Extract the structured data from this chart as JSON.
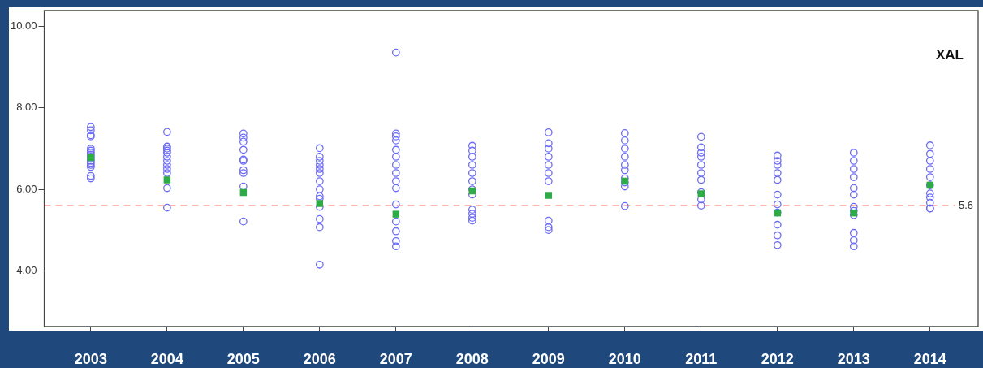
{
  "chart_data": {
    "type": "scatter",
    "xlim": [
      2002.39,
      2014.63
    ],
    "xticks": [
      2003,
      2004,
      2005,
      2006,
      2007,
      2008,
      2009,
      2010,
      2011,
      2012,
      2013,
      2014
    ],
    "ylim": [
      2.63,
      10.39
    ],
    "yticks": [
      {
        "value": 4,
        "label": "4.00"
      },
      {
        "value": 6,
        "label": "6.00"
      },
      {
        "value": 8,
        "label": "8.00"
      },
      {
        "value": 10,
        "label": "10.00"
      }
    ],
    "marker": "circle",
    "series": [
      {
        "type": "scatter",
        "color": "#6b6bf5",
        "x": [
          2003,
          2003,
          2003,
          2003,
          2003,
          2003,
          2003,
          2003,
          2003,
          2003,
          2003,
          2003,
          2003,
          2003,
          2003,
          2003,
          2004,
          2004,
          2004,
          2004,
          2004,
          2004,
          2004,
          2004,
          2004,
          2004,
          2004,
          2004,
          2005,
          2005,
          2005,
          2005,
          2005,
          2005,
          2005,
          2005,
          2005,
          2005,
          2006,
          2006,
          2006,
          2006,
          2006,
          2006,
          2006,
          2006,
          2006,
          2006,
          2006,
          2006,
          2006,
          2006,
          2007,
          2007,
          2007,
          2007,
          2007,
          2007,
          2007,
          2007,
          2007,
          2007,
          2007,
          2007,
          2007,
          2007,
          2007,
          2008,
          2008,
          2008,
          2008,
          2008,
          2008,
          2008,
          2008,
          2008,
          2008,
          2008,
          2008,
          2009,
          2009,
          2009,
          2009,
          2009,
          2009,
          2009,
          2009,
          2009,
          2009,
          2010,
          2010,
          2010,
          2010,
          2010,
          2010,
          2010,
          2010,
          2010,
          2010,
          2011,
          2011,
          2011,
          2011,
          2011,
          2011,
          2011,
          2011,
          2011,
          2011,
          2012,
          2012,
          2012,
          2012,
          2012,
          2012,
          2012,
          2012,
          2012,
          2012,
          2012,
          2013,
          2013,
          2013,
          2013,
          2013,
          2013,
          2013,
          2013,
          2013,
          2013,
          2013,
          2013,
          2014,
          2014,
          2014,
          2014,
          2014,
          2014,
          2014,
          2014,
          2014,
          2014,
          2014
        ],
        "values": [
          7.53,
          7.45,
          7.33,
          7.3,
          7.0,
          6.95,
          6.9,
          6.85,
          6.8,
          6.75,
          6.7,
          6.65,
          6.6,
          6.55,
          6.33,
          6.27,
          7.41,
          7.05,
          7.0,
          6.95,
          6.9,
          6.8,
          6.7,
          6.6,
          6.5,
          6.4,
          6.03,
          5.55,
          7.37,
          7.27,
          7.17,
          6.97,
          6.73,
          6.7,
          6.47,
          6.4,
          6.07,
          5.21,
          7.01,
          6.8,
          6.7,
          6.6,
          6.5,
          6.4,
          6.2,
          6.0,
          5.83,
          5.77,
          5.57,
          5.27,
          5.07,
          4.15,
          9.36,
          7.37,
          7.3,
          7.2,
          6.97,
          6.8,
          6.6,
          6.4,
          6.2,
          6.03,
          5.63,
          5.21,
          4.97,
          4.73,
          4.6,
          7.07,
          6.95,
          6.8,
          6.6,
          6.4,
          6.2,
          6.0,
          5.87,
          5.5,
          5.4,
          5.3,
          5.23,
          7.4,
          7.13,
          7.0,
          6.8,
          6.6,
          6.4,
          6.2,
          5.23,
          5.07,
          5.0,
          7.38,
          7.2,
          7.0,
          6.8,
          6.6,
          6.47,
          6.27,
          6.17,
          6.07,
          5.59,
          7.29,
          7.03,
          6.9,
          6.8,
          6.6,
          6.4,
          6.23,
          5.93,
          5.75,
          5.6,
          6.83,
          6.7,
          6.6,
          6.4,
          6.23,
          5.87,
          5.63,
          5.43,
          5.13,
          4.87,
          4.63,
          6.9,
          6.7,
          6.5,
          6.3,
          6.03,
          5.87,
          5.57,
          5.47,
          5.37,
          4.93,
          4.75,
          4.6,
          7.08,
          6.87,
          6.7,
          6.5,
          6.3,
          6.1,
          5.9,
          5.8,
          5.67,
          5.53,
          5.53
        ]
      },
      {
        "type": "scatter",
        "color": "#2eaa46",
        "marker": "square",
        "x": [
          2003,
          2004,
          2005,
          2006,
          2007,
          2008,
          2009,
          2010,
          2011,
          2012,
          2013,
          2014
        ],
        "values": [
          6.78,
          6.23,
          5.92,
          5.65,
          5.39,
          5.96,
          5.85,
          6.2,
          5.89,
          5.42,
          5.42,
          6.1
        ]
      }
    ],
    "ref_lines": [
      {
        "axis": "y",
        "value": 5.6,
        "label": "5.6",
        "color": "#ffb3b3",
        "line_style": "dashed"
      }
    ],
    "annotations": [
      "XAL"
    ]
  }
}
